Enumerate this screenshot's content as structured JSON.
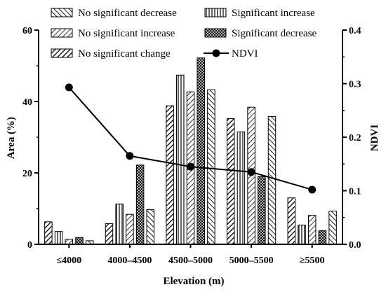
{
  "chart_data": {
    "type": "bar",
    "title": "",
    "xlabel": "Elevation (m)",
    "ylabel": "Area (%)",
    "y2label": "NDVI",
    "categories": [
      "≤4000",
      "4000–4500",
      "4500–5000",
      "5000–5500",
      "≥5500"
    ],
    "ylim": [
      0,
      60
    ],
    "yticks": [
      "0",
      "20",
      "40",
      "60"
    ],
    "y2lim": [
      0,
      0.4
    ],
    "y2ticks": [
      "0.0",
      "0.1",
      "0.2",
      "0.3",
      "0.4"
    ],
    "series": [
      {
        "name": "No significant change",
        "pattern": "diag-right-thick",
        "values": [
          6.3,
          5.8,
          38.8,
          35.2,
          13.0
        ]
      },
      {
        "name": "Significant increase",
        "pattern": "vertical",
        "values": [
          3.6,
          11.3,
          47.4,
          31.5,
          5.4
        ]
      },
      {
        "name": "No significant increase",
        "pattern": "diag-right",
        "values": [
          1.4,
          8.4,
          42.7,
          38.4,
          8.1
        ]
      },
      {
        "name": "Significant decrease",
        "pattern": "crosshatch",
        "values": [
          1.9,
          22.2,
          52.2,
          19.0,
          3.8
        ]
      },
      {
        "name": "No significant decrease",
        "pattern": "diag-left",
        "values": [
          1.0,
          9.7,
          43.3,
          35.8,
          9.3
        ]
      }
    ],
    "line_series": {
      "name": "NDVI",
      "axis": "right",
      "values": [
        0.293,
        0.165,
        0.145,
        0.135,
        0.102
      ]
    },
    "legend": [
      {
        "label": "No significant decrease",
        "pattern": "diag-left"
      },
      {
        "label": "Significant increase",
        "pattern": "vertical"
      },
      {
        "label": "No significant increase",
        "pattern": "diag-right"
      },
      {
        "label": "Significant decrease",
        "pattern": "crosshatch"
      },
      {
        "label": "No significant change",
        "pattern": "diag-right-thick"
      },
      {
        "label": "NDVI",
        "pattern": "line-marker"
      }
    ],
    "legend_placement": "top-inside",
    "grid": false,
    "colors": {
      "ink": "#000000",
      "background": "#ffffff"
    }
  }
}
